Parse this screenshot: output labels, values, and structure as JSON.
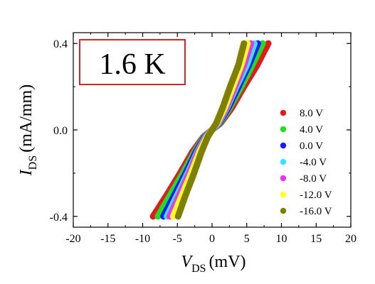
{
  "chart_data": {
    "type": "scatter",
    "annotation": "1.6 K",
    "xlabel": {
      "main": "V",
      "sub": "DS",
      "unit": "(mV)"
    },
    "ylabel": {
      "main": "I",
      "sub": "DS",
      "unit": "(mA/mm)"
    },
    "xlim": [
      -20,
      20
    ],
    "ylim": [
      -0.45,
      0.45
    ],
    "x_ticks": [
      "-20",
      "-15",
      "-10",
      "-5",
      "0",
      "5",
      "10",
      "15",
      "20"
    ],
    "y_ticks": [
      "-0.4",
      "0.0",
      "0.4"
    ],
    "legend_position": "right",
    "grid": false,
    "series": [
      {
        "name": "8.0 V",
        "color": "#e31a1c",
        "x": [
          -8.5,
          -6.5,
          -4.6,
          -2.8,
          -1.2,
          0,
          1.2,
          2.8,
          4.6,
          6.5,
          8.1
        ],
        "y": [
          -0.4,
          -0.3,
          -0.2,
          -0.1,
          -0.03,
          0,
          0.03,
          0.1,
          0.2,
          0.3,
          0.4
        ]
      },
      {
        "name": "4.0 V",
        "color": "#22dd22",
        "x": [
          -7.8,
          -6.0,
          -4.2,
          -2.5,
          -1.1,
          0,
          1.1,
          2.5,
          4.2,
          5.8,
          7.3
        ],
        "y": [
          -0.4,
          -0.3,
          -0.2,
          -0.1,
          -0.03,
          0,
          0.03,
          0.1,
          0.2,
          0.3,
          0.4
        ]
      },
      {
        "name": "0.0 V",
        "color": "#1a1aff",
        "x": [
          -7.0,
          -5.4,
          -3.8,
          -2.3,
          -1.0,
          0,
          1.0,
          2.3,
          3.8,
          5.3,
          6.6
        ],
        "y": [
          -0.4,
          -0.3,
          -0.2,
          -0.1,
          -0.03,
          0,
          0.03,
          0.1,
          0.2,
          0.3,
          0.4
        ]
      },
      {
        "name": "-4.0 V",
        "color": "#33e6ff",
        "x": [
          -6.5,
          -5.0,
          -3.5,
          -2.1,
          -0.9,
          0,
          0.9,
          2.1,
          3.5,
          5.0,
          6.1
        ],
        "y": [
          -0.4,
          -0.3,
          -0.2,
          -0.1,
          -0.03,
          0,
          0.03,
          0.1,
          0.2,
          0.3,
          0.4
        ]
      },
      {
        "name": "-8.0 V",
        "color": "#ee33ee",
        "x": [
          -6.1,
          -4.7,
          -3.3,
          -2.0,
          -0.8,
          0,
          0.8,
          2.0,
          3.3,
          4.6,
          5.6
        ],
        "y": [
          -0.4,
          -0.3,
          -0.2,
          -0.1,
          -0.03,
          0,
          0.03,
          0.1,
          0.2,
          0.3,
          0.4
        ]
      },
      {
        "name": "-12.0 V",
        "color": "#ffff22",
        "x": [
          -5.6,
          -4.3,
          -3.0,
          -1.8,
          -0.7,
          0,
          0.7,
          1.8,
          3.0,
          4.2,
          5.1
        ],
        "y": [
          -0.4,
          -0.3,
          -0.2,
          -0.1,
          -0.03,
          0,
          0.03,
          0.1,
          0.2,
          0.3,
          0.4
        ]
      },
      {
        "name": "-16.0 V",
        "color": "#808000",
        "x": [
          -4.9,
          -3.8,
          -2.6,
          -1.5,
          -0.6,
          0,
          0.6,
          1.5,
          2.6,
          3.8,
          4.6
        ],
        "y": [
          -0.4,
          -0.3,
          -0.2,
          -0.1,
          -0.03,
          0,
          0.03,
          0.1,
          0.2,
          0.3,
          0.4
        ]
      }
    ]
  }
}
